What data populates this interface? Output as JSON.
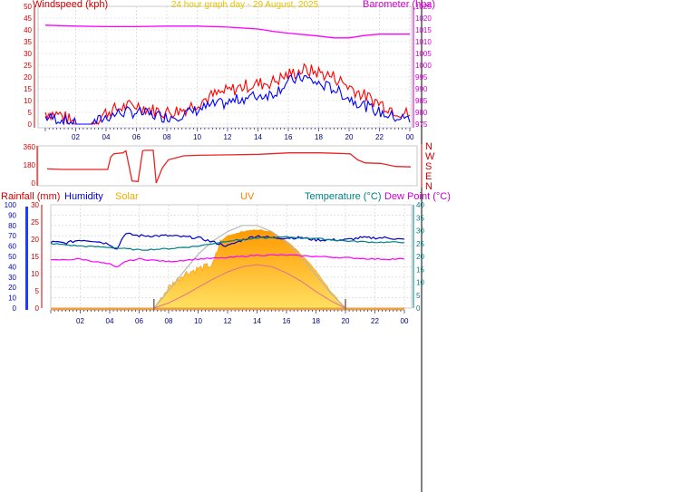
{
  "header": {
    "title": "24 hour graph day - 29 August, 2025"
  },
  "colors": {
    "wind_gust": "#ff0000",
    "wind_avg": "#0000ff",
    "barometer": "#ff00ff",
    "direction": "#ee2222",
    "title": "#ffd700",
    "rainfall": "#cc0000",
    "humidity": "#0000cc",
    "solar": "#ffc000",
    "uv": "#ff8000",
    "temperature": "#008080",
    "dewpoint": "#ff00ff",
    "grid": "#d0d0d0",
    "axis_tick": "#000080"
  },
  "panel_wind": {
    "ylabel_left": "Windspeed (kph)",
    "ylabel_right": "Barometer (hpa)"
  },
  "panel_direction": {
    "compass_letters": [
      "N",
      "W",
      "S",
      "E",
      "N"
    ]
  },
  "panel_bottom": {
    "labels": {
      "rainfall": "Rainfall (mm)",
      "humidity": "Humidity",
      "solar": "Solar",
      "uv": "UV",
      "temperature": "Temperature (°C)",
      "dewpoint": "Dew Point (°C)"
    }
  },
  "chart_data": [
    {
      "type": "line",
      "name": "wind-barometer",
      "title": "24 hour graph day - 29 August, 2025",
      "xlabel": "",
      "ylabel": "Windspeed (kph)",
      "y2label": "Barometer (hpa)",
      "x_ticks": [
        "02",
        "04",
        "06",
        "08",
        "10",
        "12",
        "14",
        "16",
        "18",
        "20",
        "22",
        "00"
      ],
      "ylim": [
        0,
        50
      ],
      "y_ticks": [
        0,
        5,
        10,
        15,
        20,
        25,
        30,
        35,
        40,
        45,
        50
      ],
      "y2lim": [
        975,
        1025
      ],
      "y2_ticks": [
        975,
        980,
        985,
        990,
        995,
        1000,
        1005,
        1010,
        1015,
        1020,
        1025
      ],
      "grid": true,
      "series": [
        {
          "name": "Windspeed",
          "axis": "left",
          "x": [
            0,
            1,
            2,
            3,
            4,
            5,
            6,
            7,
            8,
            9,
            10,
            11,
            12,
            13,
            14,
            15,
            16,
            17,
            18,
            19,
            20,
            21,
            22,
            23,
            24
          ],
          "values": [
            3,
            2,
            0,
            0,
            3,
            5,
            5,
            4,
            3,
            4,
            6,
            8,
            9,
            11,
            12,
            13,
            18,
            20,
            17,
            15,
            11,
            8,
            5,
            3,
            2
          ]
        },
        {
          "name": "Gust",
          "axis": "left",
          "x": [
            0,
            1,
            2,
            3,
            4,
            5,
            6,
            7,
            8,
            9,
            10,
            11,
            12,
            13,
            14,
            15,
            16,
            17,
            18,
            19,
            20,
            21,
            22,
            23,
            24
          ],
          "values": [
            5,
            4,
            0,
            0,
            5,
            7,
            8,
            6,
            5,
            6,
            9,
            12,
            14,
            16,
            17,
            18,
            21,
            23,
            22,
            20,
            16,
            12,
            9,
            6,
            4
          ]
        },
        {
          "name": "Barometer",
          "axis": "right",
          "x": [
            0,
            2,
            4,
            6,
            8,
            10,
            12,
            14,
            15,
            16,
            17,
            18,
            19,
            20,
            21,
            22,
            24
          ],
          "values": [
            1017,
            1016.6,
            1016.4,
            1016.4,
            1016.6,
            1016.6,
            1016.2,
            1015.4,
            1014.4,
            1013.6,
            1013,
            1012.4,
            1011.6,
            1011.6,
            1012.6,
            1013.2,
            1013.2
          ]
        }
      ]
    },
    {
      "type": "line",
      "name": "wind-direction",
      "x_ticks": [],
      "ylim": [
        0,
        360
      ],
      "y_ticks": [
        0,
        180,
        360
      ],
      "grid": false,
      "series": [
        {
          "name": "Wind direction",
          "x": [
            0,
            1,
            2,
            3,
            4,
            4.2,
            4.4,
            5,
            5.2,
            5.6,
            6,
            6.3,
            6.5,
            7,
            7.2,
            7.6,
            8,
            9,
            10,
            12,
            14,
            16,
            18,
            19,
            20,
            20.5,
            21,
            22,
            23,
            24
          ],
          "values": [
            140,
            135,
            135,
            135,
            135,
            260,
            290,
            300,
            320,
            20,
            15,
            320,
            325,
            325,
            0,
            150,
            230,
            270,
            275,
            280,
            285,
            300,
            300,
            295,
            290,
            230,
            200,
            195,
            165,
            160
          ]
        }
      ]
    },
    {
      "type": "area",
      "name": "rain-humidity-solar-uv-temperature",
      "x_ticks": [
        "02",
        "04",
        "06",
        "08",
        "10",
        "12",
        "14",
        "16",
        "18",
        "20",
        "22",
        "00"
      ],
      "ylim_left": [
        0,
        100
      ],
      "y_ticks_left": [
        0,
        10,
        20,
        30,
        40,
        50,
        60,
        70,
        80,
        90,
        100
      ],
      "ylim_rain": [
        0,
        30
      ],
      "y_ticks_rain": [
        0,
        5,
        10,
        15,
        20,
        25,
        30
      ],
      "ylim_right": [
        0,
        40
      ],
      "y_ticks_right": [
        0,
        5,
        10,
        15,
        20,
        25,
        30,
        35,
        40
      ],
      "grid": true,
      "series": [
        {
          "name": "Rainfall",
          "axis": "rain",
          "x": [
            0,
            24
          ],
          "values": [
            0,
            0
          ]
        },
        {
          "name": "Humidity",
          "axis": "left",
          "x": [
            0,
            1,
            2,
            3,
            4,
            4.5,
            5,
            6,
            7,
            8,
            9,
            10,
            11,
            12,
            13,
            14,
            15,
            16,
            17,
            18,
            19,
            20,
            21,
            22,
            23,
            24
          ],
          "values": [
            64,
            63,
            66,
            65,
            62,
            57,
            72,
            70,
            70,
            70,
            69,
            68,
            64,
            60,
            66,
            70,
            68,
            68,
            68,
            66,
            66,
            66,
            68,
            68,
            68,
            66
          ]
        },
        {
          "name": "Temperature",
          "axis": "right",
          "x": [
            0,
            2,
            4,
            6,
            8,
            10,
            12,
            14,
            16,
            18,
            20,
            22,
            24
          ],
          "values": [
            25,
            24,
            23.5,
            22.5,
            23,
            24,
            26,
            27,
            27.5,
            27,
            26,
            25.5,
            25.5
          ]
        },
        {
          "name": "Dew Point",
          "axis": "right",
          "x": [
            0,
            2,
            3,
            4,
            4.5,
            5,
            6,
            8,
            10,
            12,
            14,
            16,
            18,
            20,
            22,
            24
          ],
          "values": [
            18.5,
            19,
            18,
            17,
            15.5,
            18,
            19,
            18,
            19,
            19.5,
            20.5,
            20.5,
            20,
            19.5,
            19,
            19
          ]
        },
        {
          "name": "Solar",
          "axis": "solar",
          "x": [
            7,
            8,
            9,
            10,
            11,
            11.5,
            12,
            13,
            14,
            15,
            16,
            17,
            18,
            19,
            20
          ],
          "values": [
            0,
            200,
            330,
            380,
            420,
            640,
            700,
            740,
            760,
            740,
            650,
            520,
            360,
            160,
            0
          ]
        },
        {
          "name": "Solar (max)",
          "axis": "solar",
          "x": [
            7,
            8,
            9,
            10,
            11,
            12,
            13,
            14,
            15,
            16,
            17,
            18,
            19,
            20
          ],
          "values": [
            0,
            170,
            350,
            520,
            650,
            740,
            800,
            800,
            740,
            640,
            490,
            320,
            140,
            0
          ]
        },
        {
          "name": "UV",
          "axis": "uv",
          "x": [
            7,
            8,
            9,
            10,
            11,
            12,
            13,
            14,
            15,
            16,
            17,
            18,
            19,
            20
          ],
          "values": [
            0,
            0.5,
            1.2,
            2,
            2.8,
            3.5,
            4,
            4.2,
            4,
            3.4,
            2.6,
            1.6,
            0.7,
            0
          ]
        }
      ]
    }
  ]
}
